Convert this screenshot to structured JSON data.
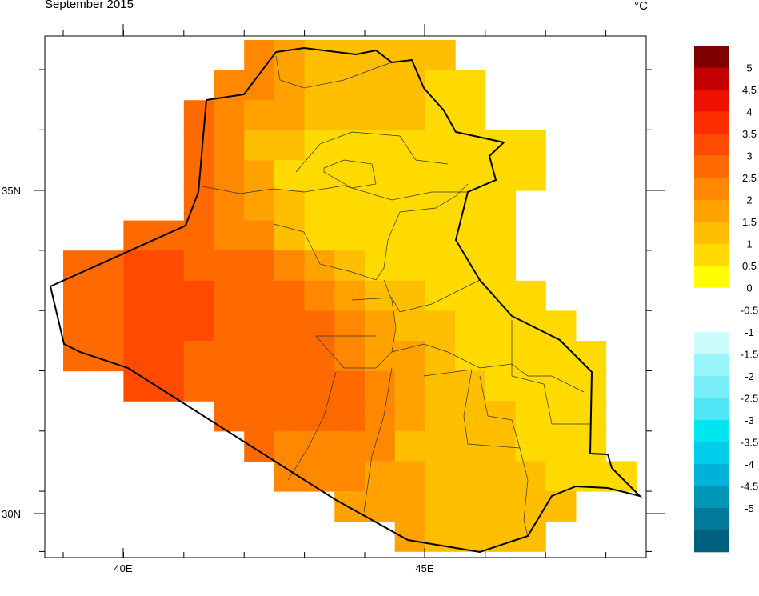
{
  "chart_data": {
    "type": "grid-map",
    "title": "September 2015",
    "unit": "°C",
    "xticks": [
      {
        "value": 40,
        "label": "40E"
      },
      {
        "value": 45,
        "label": "45E"
      }
    ],
    "yticks": [
      {
        "value": 35,
        "label": "35N"
      },
      {
        "value": 30,
        "label": "30N"
      }
    ],
    "colorbar": {
      "levels": [
        5,
        4.5,
        4,
        3.5,
        3,
        2.5,
        2,
        1.5,
        1,
        0.5,
        0,
        -0.5,
        -1,
        -1.5,
        -2,
        -2.5,
        -3,
        -3.5,
        -4,
        -4.5,
        -5
      ],
      "colors": [
        "#800000",
        "#c40000",
        "#ee1100",
        "#ff2e00",
        "#ff4a00",
        "#ff6a00",
        "#ff8800",
        "#ffa200",
        "#ffbe00",
        "#ffda00",
        "#ffff00",
        "#ffffff",
        "#ffffff",
        "#ccfcfc",
        "#99f6fb",
        "#77eef8",
        "#4fe6f6",
        "#00e6f0",
        "#00ccec",
        "#00b2d8",
        "#0095b5",
        "#007a98",
        "#006080"
      ]
    },
    "grid_values": [
      [
        null,
        null,
        null,
        null,
        null,
        null,
        2.3,
        1.8,
        1.3,
        1.3,
        1.3,
        1.3,
        1.3,
        null,
        null,
        null,
        null,
        null,
        null
      ],
      [
        null,
        null,
        null,
        null,
        null,
        2.3,
        2.3,
        1.8,
        1.3,
        1.3,
        1.3,
        1.3,
        0.8,
        0.8,
        null,
        null,
        null,
        null,
        null
      ],
      [
        null,
        null,
        null,
        null,
        2.8,
        2.3,
        1.8,
        1.8,
        1.3,
        1.3,
        1.3,
        1.3,
        0.8,
        0.8,
        null,
        null,
        null,
        null,
        null
      ],
      [
        null,
        null,
        null,
        null,
        2.8,
        2.3,
        1.3,
        1.3,
        0.8,
        0.8,
        0.8,
        0.8,
        0.8,
        0.8,
        0.8,
        0.8,
        null,
        null,
        null
      ],
      [
        null,
        null,
        null,
        null,
        2.8,
        2.3,
        1.8,
        0.8,
        0.8,
        0.8,
        0.8,
        0.8,
        0.8,
        0.8,
        0.8,
        0.8,
        null,
        null,
        null
      ],
      [
        null,
        null,
        null,
        null,
        2.8,
        2.3,
        1.8,
        1.3,
        0.8,
        0.8,
        0.8,
        0.8,
        0.8,
        0.8,
        0.8,
        null,
        null,
        null,
        null
      ],
      [
        null,
        null,
        2.8,
        2.8,
        2.8,
        2.3,
        2.3,
        1.3,
        0.8,
        0.8,
        0.8,
        0.8,
        0.8,
        0.8,
        0.8,
        null,
        null,
        null,
        null
      ],
      [
        2.8,
        2.8,
        3.2,
        3.2,
        2.8,
        2.8,
        2.8,
        2.3,
        1.8,
        1.3,
        0.8,
        0.8,
        0.8,
        0.8,
        0.8,
        null,
        null,
        null,
        null
      ],
      [
        2.8,
        2.8,
        3.2,
        3.2,
        3.2,
        2.8,
        2.8,
        2.8,
        2.3,
        1.8,
        1.3,
        1.3,
        0.8,
        0.8,
        0.8,
        0.8,
        null,
        null,
        null
      ],
      [
        2.8,
        2.8,
        3.2,
        3.2,
        3.2,
        2.8,
        2.8,
        2.8,
        2.8,
        2.3,
        1.8,
        1.3,
        1.3,
        0.8,
        0.8,
        0.8,
        0.8,
        null,
        null
      ],
      [
        2.8,
        2.8,
        3.2,
        3.2,
        2.8,
        2.8,
        2.8,
        2.8,
        2.8,
        2.3,
        1.8,
        1.8,
        1.3,
        0.8,
        0.8,
        0.8,
        0.8,
        0.8,
        null
      ],
      [
        null,
        null,
        3.2,
        3.2,
        2.8,
        2.8,
        2.8,
        2.8,
        2.8,
        2.8,
        2.3,
        1.8,
        1.3,
        1.3,
        0.8,
        0.8,
        0.8,
        0.8,
        null
      ],
      [
        null,
        null,
        null,
        null,
        null,
        2.8,
        2.8,
        2.8,
        2.8,
        2.8,
        2.3,
        1.8,
        1.3,
        1.3,
        1.3,
        0.8,
        0.8,
        0.8,
        null
      ],
      [
        null,
        null,
        null,
        null,
        null,
        null,
        2.8,
        2.3,
        2.3,
        2.3,
        2.3,
        1.3,
        1.3,
        1.3,
        1.3,
        0.8,
        0.8,
        0.8,
        null
      ],
      [
        null,
        null,
        null,
        null,
        null,
        null,
        null,
        2.3,
        2.3,
        2.3,
        1.8,
        1.8,
        1.3,
        1.3,
        1.3,
        1.3,
        0.8,
        0.8,
        0.8
      ],
      [
        null,
        null,
        null,
        null,
        null,
        null,
        null,
        null,
        null,
        1.8,
        1.8,
        1.8,
        1.3,
        1.3,
        1.3,
        1.3,
        1.3,
        null,
        null
      ],
      [
        null,
        null,
        null,
        null,
        null,
        null,
        null,
        null,
        null,
        null,
        null,
        1.8,
        1.3,
        1.3,
        1.3,
        1.3,
        null,
        null,
        null
      ]
    ]
  }
}
